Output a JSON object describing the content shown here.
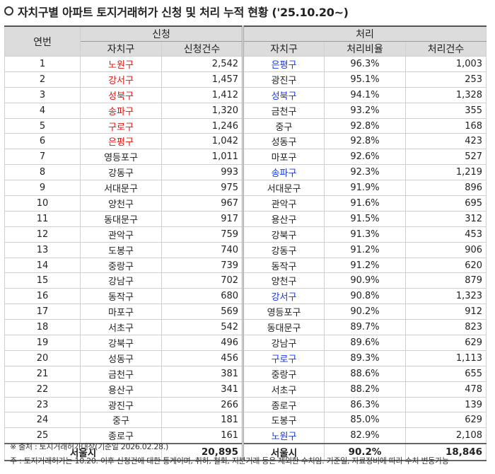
{
  "title": "자치구별 아파트 토지거래허가 신청 및 처리 누적 현황 ('25.10.20~)",
  "headers": {
    "no": "연번",
    "apply": "신청",
    "process": "처리",
    "district": "자치구",
    "apply_count": "신청건수",
    "process_rate": "처리비율",
    "process_count": "처리건수"
  },
  "colors": {
    "red": "#e0140f",
    "blue": "#1537e6"
  },
  "rows": [
    {
      "no": "1",
      "a_dist": "노원구",
      "a_color": "red",
      "a_cnt": "2,542",
      "p_dist": "은평구",
      "p_color": "blue",
      "p_rate": "96.3%",
      "p_cnt": "1,003"
    },
    {
      "no": "2",
      "a_dist": "강서구",
      "a_color": "red",
      "a_cnt": "1,457",
      "p_dist": "광진구",
      "p_color": "",
      "p_rate": "95.1%",
      "p_cnt": "253"
    },
    {
      "no": "3",
      "a_dist": "성북구",
      "a_color": "red",
      "a_cnt": "1,412",
      "p_dist": "성북구",
      "p_color": "blue",
      "p_rate": "94.1%",
      "p_cnt": "1,328"
    },
    {
      "no": "4",
      "a_dist": "송파구",
      "a_color": "red",
      "a_cnt": "1,320",
      "p_dist": "금천구",
      "p_color": "",
      "p_rate": "93.2%",
      "p_cnt": "355"
    },
    {
      "no": "5",
      "a_dist": "구로구",
      "a_color": "red",
      "a_cnt": "1,246",
      "p_dist": "중구",
      "p_color": "",
      "p_rate": "92.8%",
      "p_cnt": "168"
    },
    {
      "no": "6",
      "a_dist": "은평구",
      "a_color": "red",
      "a_cnt": "1,042",
      "p_dist": "성동구",
      "p_color": "",
      "p_rate": "92.8%",
      "p_cnt": "423"
    },
    {
      "no": "7",
      "a_dist": "영등포구",
      "a_color": "",
      "a_cnt": "1,011",
      "p_dist": "마포구",
      "p_color": "",
      "p_rate": "92.6%",
      "p_cnt": "527"
    },
    {
      "no": "8",
      "a_dist": "강동구",
      "a_color": "",
      "a_cnt": "993",
      "p_dist": "송파구",
      "p_color": "blue",
      "p_rate": "92.3%",
      "p_cnt": "1,219"
    },
    {
      "no": "9",
      "a_dist": "서대문구",
      "a_color": "",
      "a_cnt": "975",
      "p_dist": "서대문구",
      "p_color": "",
      "p_rate": "91.9%",
      "p_cnt": "896"
    },
    {
      "no": "10",
      "a_dist": "양천구",
      "a_color": "",
      "a_cnt": "967",
      "p_dist": "관악구",
      "p_color": "",
      "p_rate": "91.6%",
      "p_cnt": "695"
    },
    {
      "no": "11",
      "a_dist": "동대문구",
      "a_color": "",
      "a_cnt": "917",
      "p_dist": "용산구",
      "p_color": "",
      "p_rate": "91.5%",
      "p_cnt": "312"
    },
    {
      "no": "12",
      "a_dist": "관악구",
      "a_color": "",
      "a_cnt": "759",
      "p_dist": "강북구",
      "p_color": "",
      "p_rate": "91.3%",
      "p_cnt": "453"
    },
    {
      "no": "13",
      "a_dist": "도봉구",
      "a_color": "",
      "a_cnt": "740",
      "p_dist": "강동구",
      "p_color": "",
      "p_rate": "91.2%",
      "p_cnt": "906"
    },
    {
      "no": "14",
      "a_dist": "중랑구",
      "a_color": "",
      "a_cnt": "739",
      "p_dist": "동작구",
      "p_color": "",
      "p_rate": "91.2%",
      "p_cnt": "620"
    },
    {
      "no": "15",
      "a_dist": "강남구",
      "a_color": "",
      "a_cnt": "702",
      "p_dist": "양천구",
      "p_color": "",
      "p_rate": "90.9%",
      "p_cnt": "879"
    },
    {
      "no": "16",
      "a_dist": "동작구",
      "a_color": "",
      "a_cnt": "680",
      "p_dist": "강서구",
      "p_color": "blue",
      "p_rate": "90.8%",
      "p_cnt": "1,323"
    },
    {
      "no": "17",
      "a_dist": "마포구",
      "a_color": "",
      "a_cnt": "569",
      "p_dist": "영등포구",
      "p_color": "",
      "p_rate": "90.2%",
      "p_cnt": "912"
    },
    {
      "no": "18",
      "a_dist": "서초구",
      "a_color": "",
      "a_cnt": "542",
      "p_dist": "동대문구",
      "p_color": "",
      "p_rate": "89.7%",
      "p_cnt": "823"
    },
    {
      "no": "19",
      "a_dist": "강북구",
      "a_color": "",
      "a_cnt": "496",
      "p_dist": "강남구",
      "p_color": "",
      "p_rate": "89.6%",
      "p_cnt": "629"
    },
    {
      "no": "20",
      "a_dist": "성동구",
      "a_color": "",
      "a_cnt": "456",
      "p_dist": "구로구",
      "p_color": "blue",
      "p_rate": "89.3%",
      "p_cnt": "1,113"
    },
    {
      "no": "21",
      "a_dist": "금천구",
      "a_color": "",
      "a_cnt": "381",
      "p_dist": "중랑구",
      "p_color": "",
      "p_rate": "88.6%",
      "p_cnt": "655"
    },
    {
      "no": "22",
      "a_dist": "용산구",
      "a_color": "",
      "a_cnt": "341",
      "p_dist": "서초구",
      "p_color": "",
      "p_rate": "88.2%",
      "p_cnt": "478"
    },
    {
      "no": "23",
      "a_dist": "광진구",
      "a_color": "",
      "a_cnt": "266",
      "p_dist": "종로구",
      "p_color": "",
      "p_rate": "86.3%",
      "p_cnt": "139"
    },
    {
      "no": "24",
      "a_dist": "중구",
      "a_color": "",
      "a_cnt": "181",
      "p_dist": "도봉구",
      "p_color": "",
      "p_rate": "85.0%",
      "p_cnt": "629"
    },
    {
      "no": "25",
      "a_dist": "종로구",
      "a_color": "",
      "a_cnt": "161",
      "p_dist": "노원구",
      "p_color": "blue",
      "p_rate": "82.9%",
      "p_cnt": "2,108"
    }
  ],
  "total": {
    "label_apply": "서울시",
    "apply_count": "20,895",
    "label_process": "서울시",
    "process_rate": "90.2%",
    "process_count": "18,846"
  },
  "notes": {
    "source": "※ 출처 : 토지거래허가대장(기준일 2026.02.28.)",
    "remark": "주 : 토지거래허가는 10.20. 이후 신청건에 대한 통계이며, 취하, 철회, 지분거래 등은 제외한 수치임. 기준일, 자료정비에 따라 수치 변동가능"
  }
}
